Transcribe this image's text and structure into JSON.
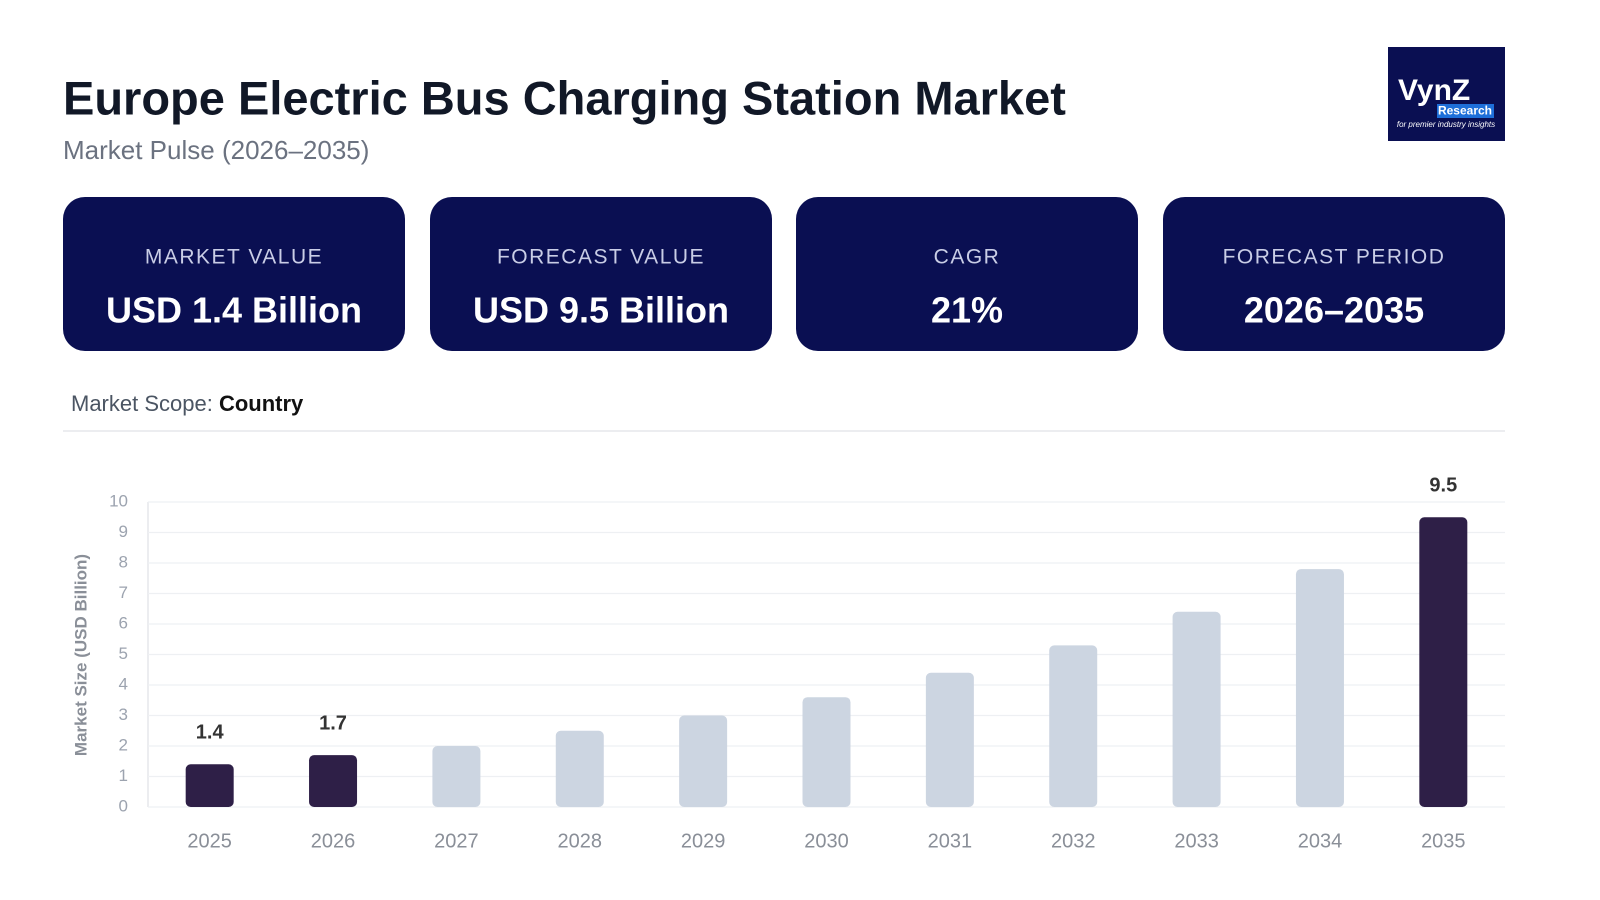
{
  "header": {
    "title": "Europe Electric Bus Charging Station Market",
    "subtitle": "Market Pulse (2026–2035)"
  },
  "logo": {
    "brand": "VynZ",
    "sub": "Research",
    "tagline": "for premier industry insights"
  },
  "cards": [
    {
      "label": "MARKET VALUE",
      "value": "USD 1.4 Billion"
    },
    {
      "label": "FORECAST VALUE",
      "value": "USD 9.5 Billion"
    },
    {
      "label": "CAGR",
      "value": "21%"
    },
    {
      "label": "FORECAST PERIOD",
      "value": "2026–2035"
    }
  ],
  "scope": {
    "label": "Market Scope:",
    "value": "Country"
  },
  "chart_data": {
    "type": "bar",
    "y_label": "Market Size (USD Billion)",
    "categories": [
      "2025",
      "2026",
      "2027",
      "2028",
      "2029",
      "2030",
      "2031",
      "2032",
      "2033",
      "2034",
      "2035"
    ],
    "values": [
      1.4,
      1.7,
      2.0,
      2.5,
      3.0,
      3.6,
      4.4,
      5.3,
      6.4,
      7.8,
      9.5
    ],
    "highlighted": [
      true,
      true,
      false,
      false,
      false,
      false,
      false,
      false,
      false,
      false,
      true
    ],
    "color": "#ccd5e1",
    "highlight_color": "#2e1f47",
    "ylim": [
      0,
      10
    ],
    "yticks": [
      0,
      1,
      2,
      3,
      4,
      5,
      6,
      7,
      8,
      9,
      10
    ],
    "grid": true
  }
}
